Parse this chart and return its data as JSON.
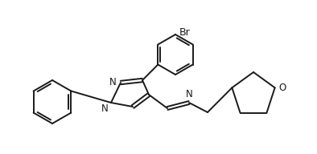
{
  "background_color": "#ffffff",
  "line_color": "#1a1a1a",
  "line_width": 1.4,
  "font_size": 8.5,
  "br_label": "Br",
  "n_label": "N",
  "o_label": "O",
  "figsize": [
    3.94,
    1.92
  ],
  "dpi": 100,
  "xlim": [
    0,
    394
  ],
  "ylim": [
    0,
    192
  ]
}
